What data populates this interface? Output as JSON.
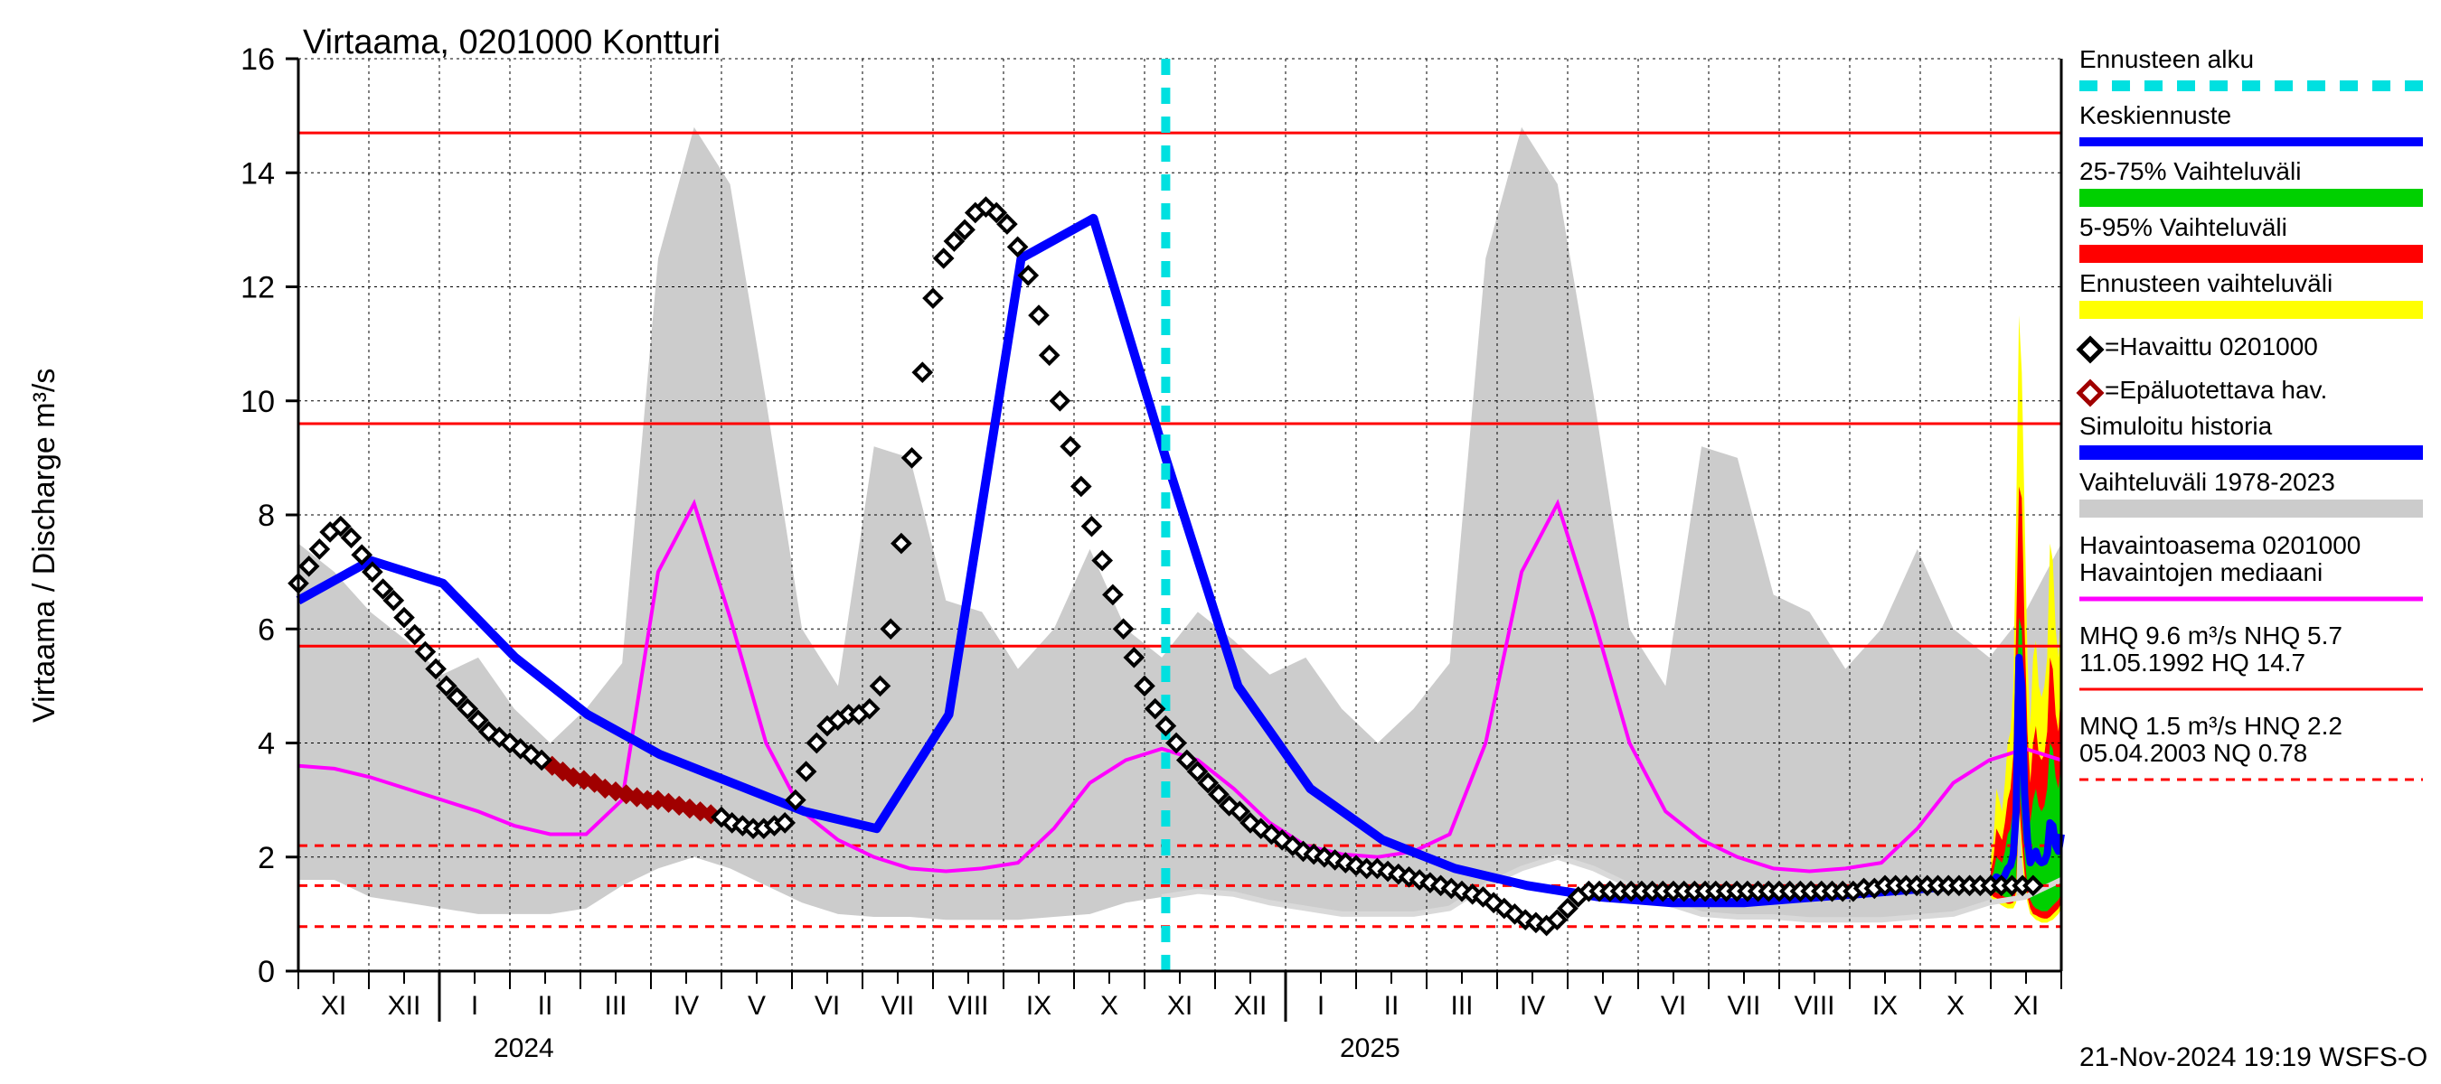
{
  "chart": {
    "type": "line-area-timeseries",
    "title": "Virtaama, 0201000 Kontturi",
    "title_fontsize": 38,
    "y_axis": {
      "label": "Virtaama / Discharge   m³/s",
      "fontsize": 34,
      "ylim": [
        0,
        16
      ],
      "ticks": [
        0,
        2,
        4,
        6,
        8,
        10,
        12,
        14,
        16
      ],
      "tick_fontsize": 34
    },
    "x_axis": {
      "months": [
        "XI",
        "XII",
        "I",
        "II",
        "III",
        "IV",
        "V",
        "VI",
        "VII",
        "VIII",
        "IX",
        "X",
        "XI",
        "XII",
        "I",
        "II",
        "III",
        "IV",
        "V",
        "VI",
        "VII",
        "VIII",
        "IX",
        "X",
        "XI"
      ],
      "year_labels": [
        {
          "text": "2024",
          "month_index": 2
        },
        {
          "text": "2025",
          "month_index": 14
        }
      ],
      "tick_fontsize": 30,
      "year_fontsize": 30,
      "forecast_start_month_index": 12.3
    },
    "colors": {
      "background": "#ffffff",
      "axis": "#000000",
      "grid": "#000000",
      "grid_dash": "3,4",
      "hist_range_fill": "#cccccc",
      "yellow_band": "#ffff00",
      "red_band": "#ff0000",
      "green_band": "#00d000",
      "blue_line": "#0000ff",
      "magenta_line": "#ff00ff",
      "hist_range_edge": "#cccccc",
      "observed_marker_stroke": "#000000",
      "observed_marker_fill": "#ffffff",
      "unreliable_marker_stroke": "#a00000",
      "unreliable_marker_fill": "#a00000",
      "forecast_start_line": "#00e0e0",
      "ref_line_solid": "#ff0000",
      "ref_line_dashed": "#ff0000"
    },
    "ref_lines_solid_y": [
      14.7,
      9.6,
      5.7
    ],
    "ref_lines_dashed_y": [
      2.2,
      1.5,
      0.78
    ],
    "hist_range": {
      "upper": [
        7.5,
        7.0,
        6.3,
        5.8,
        5.2,
        5.5,
        4.6,
        4.0,
        4.6,
        5.4,
        12.5,
        14.8,
        13.8,
        10.0,
        6.0,
        5.0,
        9.2,
        9.0,
        6.5,
        6.3,
        5.3,
        6.0,
        7.4,
        6.0,
        5.5,
        6.3,
        5.8,
        5.2,
        5.5,
        4.6,
        4.0,
        4.6,
        5.4,
        12.5,
        14.8,
        13.8,
        10.1,
        6.0,
        5.0,
        9.2,
        9.0,
        6.6,
        6.3,
        5.3,
        6.0,
        7.4,
        6.0,
        5.5,
        6.3,
        7.5
      ],
      "lower": [
        1.6,
        1.6,
        1.3,
        1.2,
        1.1,
        1.0,
        1.0,
        1.0,
        1.1,
        1.5,
        1.8,
        2.0,
        1.8,
        1.5,
        1.2,
        1.0,
        0.95,
        0.95,
        0.9,
        0.9,
        0.9,
        0.95,
        1.0,
        1.2,
        1.3,
        1.4,
        1.35,
        1.2,
        1.1,
        1.0,
        1.0,
        1.0,
        1.1,
        1.5,
        1.8,
        2.0,
        1.8,
        1.5,
        1.2,
        1.0,
        0.95,
        0.95,
        0.9,
        0.9,
        0.9,
        0.95,
        1.0,
        1.2,
        1.3,
        1.6
      ]
    },
    "yellow_band_data": {
      "start_index": 24,
      "upper": [
        2.0,
        2.3,
        3.2,
        3.0,
        2.8,
        3.3,
        4.0,
        4.2,
        5.0,
        8.0,
        11.5,
        10.5,
        8.0,
        5.5,
        4.3,
        5.5,
        5.8,
        5.0,
        4.8,
        5.0,
        5.5,
        7.5,
        7.2,
        6.0,
        5.5,
        6.5
      ],
      "lower": [
        1.3,
        1.25,
        1.2,
        1.18,
        1.15,
        1.12,
        1.1,
        1.1,
        1.1,
        1.2,
        2.8,
        2.0,
        1.5,
        1.2,
        1.0,
        0.95,
        0.9,
        0.88,
        0.85,
        0.85,
        0.85,
        0.88,
        0.9,
        0.95,
        1.0,
        1.1
      ]
    },
    "red_band_data": {
      "start_index": 24,
      "upper": [
        1.75,
        2.0,
        2.5,
        2.4,
        2.3,
        2.6,
        3.0,
        3.2,
        3.8,
        6.0,
        8.5,
        8.3,
        6.0,
        4.2,
        3.3,
        4.0,
        4.3,
        3.8,
        3.7,
        3.8,
        4.2,
        5.5,
        5.3,
        4.5,
        4.2,
        5.0
      ],
      "lower": [
        1.35,
        1.3,
        1.28,
        1.25,
        1.22,
        1.2,
        1.18,
        1.18,
        1.2,
        1.4,
        3.0,
        2.3,
        1.7,
        1.3,
        1.1,
        1.0,
        0.98,
        0.95,
        0.93,
        0.92,
        0.92,
        0.95,
        1.0,
        1.05,
        1.1,
        1.2
      ]
    },
    "green_band_data": {
      "start_index": 24,
      "upper": [
        1.6,
        1.75,
        2.0,
        1.95,
        1.9,
        2.1,
        2.4,
        2.5,
        2.9,
        4.3,
        6.2,
        6.0,
        4.5,
        3.2,
        2.6,
        3.0,
        3.2,
        2.9,
        2.8,
        2.9,
        3.2,
        4.0,
        3.9,
        3.4,
        3.2,
        3.7
      ],
      "lower": [
        1.42,
        1.4,
        1.38,
        1.35,
        1.33,
        1.3,
        1.3,
        1.3,
        1.35,
        1.6,
        3.3,
        2.7,
        2.0,
        1.5,
        1.25,
        1.15,
        1.1,
        1.08,
        1.05,
        1.05,
        1.05,
        1.1,
        1.15,
        1.2,
        1.25,
        1.35
      ]
    },
    "blue_center_line": {
      "start_index": 24,
      "values": [
        1.5,
        1.55,
        1.65,
        1.62,
        1.6,
        1.68,
        1.8,
        1.85,
        2.05,
        2.8,
        5.5,
        5.0,
        3.1,
        2.3,
        1.9,
        2.0,
        2.1,
        1.95,
        1.9,
        1.92,
        2.05,
        2.6,
        2.55,
        2.2,
        2.1,
        2.4
      ]
    },
    "magenta_line": {
      "values": [
        3.6,
        3.55,
        3.4,
        3.2,
        3.0,
        2.8,
        2.55,
        2.4,
        2.4,
        3.0,
        7.0,
        8.2,
        6.2,
        4.0,
        2.8,
        2.3,
        2.0,
        1.8,
        1.75,
        1.8,
        1.9,
        2.5,
        3.3,
        3.7,
        3.9,
        3.7,
        3.2,
        2.6,
        2.2,
        2.05,
        2.0,
        2.1,
        2.4,
        4.0,
        7.0,
        8.2,
        6.2,
        4.0,
        2.8,
        2.3,
        2.0,
        1.8,
        1.75,
        1.8,
        1.9,
        2.5,
        3.3,
        3.7,
        3.9,
        3.7
      ]
    },
    "sim_history_line": {
      "end_index": 24.6,
      "values": [
        6.5,
        7.2,
        6.8,
        5.5,
        4.5,
        3.8,
        3.3,
        2.8,
        2.5,
        4.5,
        12.5,
        13.2,
        9.0,
        5.0,
        3.2,
        2.3,
        1.8,
        1.5,
        1.3,
        1.2,
        1.2,
        1.3,
        1.4,
        1.5,
        1.5
      ]
    },
    "observed_markers": {
      "values": [
        [
          0,
          6.8
        ],
        [
          0.15,
          7.1
        ],
        [
          0.3,
          7.4
        ],
        [
          0.45,
          7.7
        ],
        [
          0.6,
          7.8
        ],
        [
          0.75,
          7.6
        ],
        [
          0.9,
          7.3
        ],
        [
          1.05,
          7.0
        ],
        [
          1.2,
          6.7
        ],
        [
          1.35,
          6.5
        ],
        [
          1.5,
          6.2
        ],
        [
          1.65,
          5.9
        ],
        [
          1.8,
          5.6
        ],
        [
          1.95,
          5.3
        ],
        [
          2.1,
          5.0
        ],
        [
          2.25,
          4.8
        ],
        [
          2.4,
          4.6
        ],
        [
          2.55,
          4.4
        ],
        [
          2.7,
          4.2
        ],
        [
          2.85,
          4.1
        ],
        [
          3.0,
          4.0
        ],
        [
          3.15,
          3.9
        ],
        [
          3.3,
          3.8
        ],
        [
          3.45,
          3.7
        ],
        [
          6.0,
          2.7
        ],
        [
          6.15,
          2.6
        ],
        [
          6.3,
          2.55
        ],
        [
          6.45,
          2.5
        ],
        [
          6.6,
          2.5
        ],
        [
          6.75,
          2.55
        ],
        [
          6.9,
          2.6
        ],
        [
          7.05,
          3.0
        ],
        [
          7.2,
          3.5
        ],
        [
          7.35,
          4.0
        ],
        [
          7.5,
          4.3
        ],
        [
          7.65,
          4.4
        ],
        [
          7.8,
          4.5
        ],
        [
          7.95,
          4.5
        ],
        [
          8.1,
          4.6
        ],
        [
          8.25,
          5.0
        ],
        [
          8.4,
          6.0
        ],
        [
          8.55,
          7.5
        ],
        [
          8.7,
          9.0
        ],
        [
          8.85,
          10.5
        ],
        [
          9.0,
          11.8
        ],
        [
          9.15,
          12.5
        ],
        [
          9.3,
          12.8
        ],
        [
          9.45,
          13.0
        ],
        [
          9.6,
          13.3
        ],
        [
          9.75,
          13.4
        ],
        [
          9.9,
          13.3
        ],
        [
          10.05,
          13.1
        ],
        [
          10.2,
          12.7
        ],
        [
          10.35,
          12.2
        ],
        [
          10.5,
          11.5
        ],
        [
          10.65,
          10.8
        ],
        [
          10.8,
          10.0
        ],
        [
          10.95,
          9.2
        ],
        [
          11.1,
          8.5
        ],
        [
          11.25,
          7.8
        ],
        [
          11.4,
          7.2
        ],
        [
          11.55,
          6.6
        ],
        [
          11.7,
          6.0
        ],
        [
          11.85,
          5.5
        ],
        [
          12.0,
          5.0
        ],
        [
          12.15,
          4.6
        ],
        [
          12.3,
          4.3
        ],
        [
          12.45,
          4.0
        ],
        [
          12.6,
          3.7
        ],
        [
          12.75,
          3.5
        ],
        [
          12.9,
          3.3
        ],
        [
          13.05,
          3.1
        ],
        [
          13.2,
          2.9
        ],
        [
          13.35,
          2.8
        ],
        [
          13.5,
          2.6
        ],
        [
          13.65,
          2.5
        ],
        [
          13.8,
          2.4
        ],
        [
          13.95,
          2.3
        ],
        [
          14.1,
          2.2
        ],
        [
          14.25,
          2.1
        ],
        [
          14.4,
          2.05
        ],
        [
          14.55,
          2.0
        ],
        [
          14.7,
          1.95
        ],
        [
          14.85,
          1.9
        ],
        [
          15.0,
          1.85
        ],
        [
          15.15,
          1.8
        ],
        [
          15.3,
          1.8
        ],
        [
          15.45,
          1.75
        ],
        [
          15.6,
          1.7
        ],
        [
          15.75,
          1.65
        ],
        [
          15.9,
          1.6
        ],
        [
          16.05,
          1.55
        ],
        [
          16.2,
          1.5
        ],
        [
          16.35,
          1.45
        ],
        [
          16.5,
          1.4
        ],
        [
          16.65,
          1.35
        ],
        [
          16.8,
          1.3
        ],
        [
          16.95,
          1.2
        ],
        [
          17.1,
          1.1
        ],
        [
          17.25,
          1.0
        ],
        [
          17.4,
          0.9
        ],
        [
          17.55,
          0.85
        ],
        [
          17.7,
          0.8
        ],
        [
          17.85,
          0.9
        ],
        [
          18.0,
          1.1
        ],
        [
          18.15,
          1.3
        ],
        [
          18.3,
          1.4
        ],
        [
          18.45,
          1.4
        ],
        [
          18.6,
          1.4
        ],
        [
          18.75,
          1.4
        ],
        [
          18.9,
          1.4
        ],
        [
          19.05,
          1.4
        ],
        [
          19.2,
          1.4
        ],
        [
          19.35,
          1.4
        ],
        [
          19.5,
          1.4
        ],
        [
          19.65,
          1.4
        ],
        [
          19.8,
          1.4
        ],
        [
          19.95,
          1.4
        ],
        [
          20.1,
          1.4
        ],
        [
          20.25,
          1.4
        ],
        [
          20.4,
          1.4
        ],
        [
          20.55,
          1.4
        ],
        [
          20.7,
          1.4
        ],
        [
          20.85,
          1.4
        ],
        [
          21.0,
          1.4
        ],
        [
          21.15,
          1.4
        ],
        [
          21.3,
          1.4
        ],
        [
          21.45,
          1.4
        ],
        [
          21.6,
          1.4
        ],
        [
          21.75,
          1.4
        ],
        [
          21.9,
          1.4
        ],
        [
          22.05,
          1.4
        ],
        [
          22.2,
          1.45
        ],
        [
          22.35,
          1.45
        ],
        [
          22.5,
          1.5
        ],
        [
          22.65,
          1.5
        ],
        [
          22.8,
          1.5
        ],
        [
          22.95,
          1.5
        ],
        [
          23.1,
          1.5
        ],
        [
          23.25,
          1.5
        ],
        [
          23.4,
          1.5
        ],
        [
          23.55,
          1.5
        ],
        [
          23.7,
          1.5
        ],
        [
          23.85,
          1.5
        ],
        [
          24.0,
          1.5
        ],
        [
          24.15,
          1.5
        ],
        [
          24.3,
          1.5
        ],
        [
          24.45,
          1.5
        ],
        [
          24.6,
          1.5
        ]
      ]
    },
    "unreliable_markers": {
      "values": [
        [
          1.2,
          6.7
        ],
        [
          1.35,
          6.5
        ],
        [
          1.5,
          6.2
        ],
        [
          1.65,
          5.9
        ],
        [
          1.8,
          5.6
        ],
        [
          1.95,
          5.3
        ],
        [
          2.1,
          5.0
        ],
        [
          2.25,
          4.8
        ],
        [
          2.4,
          4.6
        ],
        [
          2.55,
          4.4
        ],
        [
          2.7,
          4.2
        ],
        [
          2.85,
          4.1
        ],
        [
          3.0,
          4.0
        ],
        [
          3.15,
          3.9
        ],
        [
          3.3,
          3.8
        ],
        [
          3.45,
          3.7
        ],
        [
          3.6,
          3.6
        ],
        [
          3.75,
          3.5
        ],
        [
          3.9,
          3.4
        ],
        [
          4.05,
          3.35
        ],
        [
          4.2,
          3.3
        ],
        [
          4.35,
          3.2
        ],
        [
          4.5,
          3.15
        ],
        [
          4.65,
          3.1
        ],
        [
          4.8,
          3.05
        ],
        [
          4.95,
          3.0
        ],
        [
          5.1,
          3.0
        ],
        [
          5.25,
          2.95
        ],
        [
          5.4,
          2.9
        ],
        [
          5.55,
          2.85
        ],
        [
          5.7,
          2.8
        ],
        [
          5.85,
          2.75
        ],
        [
          6.0,
          2.7
        ]
      ]
    },
    "legend": {
      "fontsize": 28,
      "items": [
        {
          "key": "forecast_start",
          "label": "Ennusteen alku",
          "swatch": "cyan-dash"
        },
        {
          "key": "center",
          "label": "Keskiennuste",
          "swatch": "blue-line"
        },
        {
          "key": "q25_75",
          "label": "25-75% Vaihteluväli",
          "swatch": "green-fill"
        },
        {
          "key": "q5_95",
          "label": "5-95% Vaihteluväli",
          "swatch": "red-fill"
        },
        {
          "key": "full_range",
          "label": "Ennusteen vaihteluväli",
          "swatch": "yellow-fill"
        },
        {
          "key": "observed",
          "label": "=Havaittu 0201000",
          "swatch": "diamond-black"
        },
        {
          "key": "unreliable",
          "label": "=Epäluotettava hav.",
          "swatch": "diamond-red"
        },
        {
          "key": "sim_hist",
          "label": "Simuloitu historia",
          "swatch": "blue-thick"
        },
        {
          "key": "hist_range",
          "label": "Vaihteluväli 1978-2023",
          "swatch": "grey-fill"
        },
        {
          "key": "hist_station",
          "label": " Havaintoasema 0201000",
          "swatch": "none"
        },
        {
          "key": "median",
          "label": "Havaintojen mediaani",
          "swatch": "magenta-line"
        },
        {
          "key": "mhq",
          "label": "MHQ  9.6 m³/s NHQ  5.7",
          "swatch": "none"
        },
        {
          "key": "hq",
          "label": "11.05.1992 HQ 14.7",
          "swatch": "red-solid-line"
        },
        {
          "key": "mnq",
          "label": "MNQ  1.5 m³/s HNQ  2.2",
          "swatch": "none"
        },
        {
          "key": "nq",
          "label": "05.04.2003 NQ 0.78",
          "swatch": "red-dashed-line"
        }
      ]
    },
    "footer": "21-Nov-2024 19:19 WSFS-O",
    "footer_fontsize": 30
  }
}
